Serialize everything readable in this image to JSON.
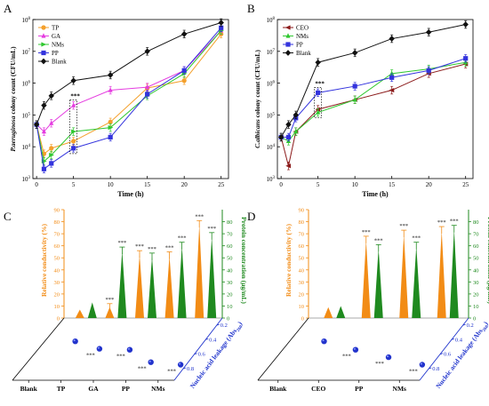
{
  "panels": {
    "A": {
      "letter": "A"
    },
    "B": {
      "letter": "B"
    },
    "C": {
      "letter": "C"
    },
    "D": {
      "letter": "D"
    }
  },
  "chart_data": [
    {
      "panel": "A",
      "type": "line",
      "xlabel": "Time (h)",
      "ylabel": "P.aeruginosa colony count (CFU/mL)",
      "ylabel_italic": "P.aeruginosa",
      "ylabel_rest": " colony count (CFU/mL)",
      "x": [
        0,
        1,
        2,
        5,
        10,
        15,
        20,
        25
      ],
      "xticks": [
        "0",
        "5",
        "10",
        "15",
        "20",
        "25"
      ],
      "xtick_values": [
        0,
        5,
        10,
        15,
        20,
        25
      ],
      "ylog": true,
      "ylim_exp": [
        3,
        8
      ],
      "ytick_exps": [
        3,
        4,
        5,
        6,
        7,
        8
      ],
      "annotation": "***",
      "series": [
        {
          "name": "TP",
          "color": "#f4a02c",
          "values": [
            50000,
            6000,
            9000,
            15000,
            60000,
            700000,
            1200000,
            35000000
          ]
        },
        {
          "name": "GA",
          "color": "#e53de0",
          "values": [
            50000,
            30000,
            55000,
            200000,
            600000,
            750000,
            2500000,
            45000000
          ]
        },
        {
          "name": "NMs",
          "color": "#30c830",
          "values": [
            50000,
            3500,
            5500,
            30000,
            40000,
            400000,
            2000000,
            45000000
          ]
        },
        {
          "name": "PP",
          "color": "#3333dd",
          "values": [
            50000,
            2000,
            3000,
            9000,
            20000,
            450000,
            2500000,
            55000000
          ]
        },
        {
          "name": "Blank",
          "color": "#111111",
          "values": [
            50000,
            200000,
            400000,
            1200000,
            1800000,
            10000000,
            35000000,
            80000000
          ]
        }
      ]
    },
    {
      "panel": "B",
      "type": "line",
      "xlabel": "Time (h)",
      "ylabel": "C.albicans colony count (CFU/mL)",
      "ylabel_italic": "C.albicans",
      "ylabel_rest": " colony count (CFU/mL)",
      "x": [
        0,
        1,
        2,
        5,
        10,
        15,
        20,
        25
      ],
      "xticks": [
        "0",
        "5",
        "10",
        "15",
        "20",
        "25"
      ],
      "xtick_values": [
        0,
        5,
        10,
        15,
        20,
        25
      ],
      "ylog": true,
      "ylim_exp": [
        3,
        8
      ],
      "ytick_exps": [
        3,
        4,
        5,
        6,
        7,
        8
      ],
      "annotation": "***",
      "series": [
        {
          "name": "CEO",
          "color": "#8b1a1a",
          "values": [
            20000,
            2500,
            30000,
            150000,
            300000,
            600000,
            2000000,
            4000000
          ]
        },
        {
          "name": "NMs",
          "color": "#30c830",
          "values": [
            20000,
            15000,
            30000,
            120000,
            300000,
            2000000,
            2800000,
            4500000
          ]
        },
        {
          "name": "PP",
          "color": "#3333dd",
          "values": [
            20000,
            20000,
            80000,
            500000,
            800000,
            1500000,
            2500000,
            6000000
          ]
        },
        {
          "name": "Blank",
          "color": "#111111",
          "values": [
            20000,
            50000,
            100000,
            4500000,
            9000000,
            25000000,
            40000000,
            70000000
          ]
        }
      ]
    },
    {
      "panel": "C",
      "type": "bar",
      "title_left": "Relative conductivity (%)",
      "title_right": "Protein concentration (μg/mL)",
      "title_depth_prefix": "Nucleic acid leakage (Abs",
      "title_depth_sub": "260",
      "title_depth_suffix": ")",
      "left_ticks": [
        "0",
        "10",
        "20",
        "30",
        "40",
        "50",
        "60",
        "70",
        "80",
        "90"
      ],
      "right_ticks": [
        "0",
        "10",
        "20",
        "30",
        "40",
        "50",
        "60",
        "70",
        "80"
      ],
      "depth_ticks": [
        "0.2",
        "0.4",
        "0.6",
        "0.8"
      ],
      "categories": [
        "Blank",
        "TP",
        "GA",
        "PP",
        "NMs"
      ],
      "conductivity": [
        7,
        9,
        53,
        52,
        78
      ],
      "conductivity_colors": "#f28c16",
      "protein": [
        13,
        56,
        51,
        60,
        68
      ],
      "protein_color": "#1f8a1f",
      "nucleic_acid": [
        0.28,
        0.43,
        0.45,
        0.7,
        0.75
      ],
      "sig_label": "***"
    },
    {
      "panel": "D",
      "type": "bar",
      "title_left": "Relative conductivity (%)",
      "title_right": "Protein concentration (μg/mL)",
      "title_depth_prefix": "Nucleic acid leakage (Abs",
      "title_depth_sub": "260",
      "title_depth_suffix": ")",
      "left_ticks": [
        "0",
        "10",
        "20",
        "30",
        "40",
        "50",
        "60",
        "70",
        "80",
        "90"
      ],
      "right_ticks": [
        "0",
        "10",
        "20",
        "30",
        "40",
        "50",
        "60",
        "70",
        "80"
      ],
      "depth_ticks": [
        "0.2",
        "0.4",
        "0.6",
        "0.8"
      ],
      "categories": [
        "Blank",
        "CEO",
        "PP",
        "NMs"
      ],
      "conductivity": [
        9,
        65,
        70,
        73
      ],
      "conductivity_colors": "#f28c16",
      "protein": [
        10,
        58,
        60,
        74
      ],
      "protein_color": "#1f8a1f",
      "nucleic_acid": [
        0.28,
        0.45,
        0.6,
        0.75
      ],
      "sig_label": "***"
    }
  ]
}
